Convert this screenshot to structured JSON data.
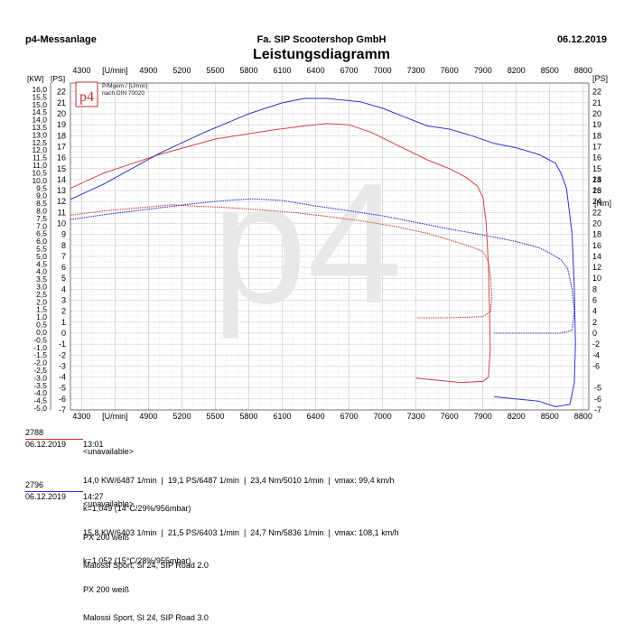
{
  "header": {
    "left": "p4-Messanlage",
    "center": "Fa. SIP Scootershop GmbH",
    "right": "06.12.2019"
  },
  "logo": {
    "text": "p4",
    "note1": "P/Mgem / [U/min]",
    "note2": "nach DIN 70020"
  },
  "watermark": "p4",
  "chart_data": {
    "type": "line",
    "title": "Leistungsdiagramm",
    "x_unit_label": "[U/min]",
    "x_ticks": [
      "4300",
      "4900",
      "5200",
      "5500",
      "5800",
      "6100",
      "6400",
      "6700",
      "7000",
      "7300",
      "7600",
      "7900",
      "8200",
      "8500",
      "8800"
    ],
    "xlim": [
      4200,
      8850
    ],
    "left_kw_label": "[KW]",
    "left_ps_label": "[PS]",
    "right_ps_label": "[PS]",
    "right_nm_label": "[Nm]",
    "kw_ticks": [
      "16,0",
      "15,5",
      "15,0",
      "14,5",
      "14,0",
      "13,5",
      "13,0",
      "12,5",
      "12,0",
      "11,5",
      "11,0",
      "10,5",
      "10,0",
      "9,5",
      "9,0",
      "8,5",
      "8,0",
      "7,5",
      "7,0",
      "6,5",
      "6,0",
      "5,5",
      "5,0",
      "4,5",
      "4,0",
      "3,5",
      "3,0",
      "2,5",
      "2,0",
      "1,5",
      "1,0",
      "0,5",
      "0,0",
      "-0,5",
      "-1,0",
      "-1,5",
      "-2,0",
      "-2,5",
      "-3,0",
      "-3,5",
      "-4,0",
      "-4,5",
      "-5,0"
    ],
    "ps_ticks": [
      "22",
      "21",
      "20",
      "19",
      "18",
      "17",
      "16",
      "15",
      "14",
      "13",
      "12",
      "11",
      "10",
      "9",
      "8",
      "7",
      "6",
      "5",
      "4",
      "3",
      "2",
      "1",
      "0",
      "-1",
      "-2",
      "-3",
      "-4",
      "-5",
      "-6",
      "-7"
    ],
    "right_ps_ticks": [
      "22",
      "21",
      "20",
      "19",
      "18",
      "17",
      "16",
      "15",
      "14",
      "13"
    ],
    "nm_ticks": [
      "28",
      "26",
      "24",
      "22",
      "20",
      "18",
      "16",
      "14",
      "12",
      "10",
      "8",
      "6",
      "4",
      "2",
      "0",
      "-2",
      "-4",
      "-6"
    ],
    "nm_low_ticks": [
      "-5",
      "-6",
      "-7"
    ],
    "ylim_ps": [
      -7,
      22.8
    ],
    "nm_scale_ps_per_nm": 0.5,
    "grid": true,
    "series": [
      {
        "name": "2788",
        "color": "#d04545",
        "power_ps": [
          [
            4200,
            13.2
          ],
          [
            4500,
            14.6
          ],
          [
            5000,
            16.3
          ],
          [
            5500,
            17.7
          ],
          [
            6000,
            18.5
          ],
          [
            6300,
            18.9
          ],
          [
            6500,
            19.1
          ],
          [
            6700,
            19.0
          ],
          [
            6900,
            18.3
          ],
          [
            7100,
            17.3
          ],
          [
            7400,
            15.8
          ],
          [
            7600,
            15.0
          ],
          [
            7750,
            14.2
          ],
          [
            7850,
            13.4
          ],
          [
            7900,
            12.4
          ],
          [
            7930,
            10
          ],
          [
            7950,
            6
          ],
          [
            7960,
            2
          ],
          [
            7965,
            -1.5
          ],
          [
            7950,
            -4
          ],
          [
            7900,
            -4.4
          ],
          [
            7700,
            -4.5
          ],
          [
            7500,
            -4.3
          ],
          [
            7300,
            -4.1
          ]
        ],
        "torque_nm": [
          [
            4200,
            21.5
          ],
          [
            4500,
            22.3
          ],
          [
            4900,
            23.0
          ],
          [
            5100,
            23.4
          ],
          [
            5300,
            23.2
          ],
          [
            5600,
            22.9
          ],
          [
            5900,
            22.5
          ],
          [
            6200,
            22.0
          ],
          [
            6500,
            21.3
          ],
          [
            6800,
            20.5
          ],
          [
            7100,
            19.5
          ],
          [
            7400,
            18.2
          ],
          [
            7600,
            17.0
          ],
          [
            7800,
            15.7
          ],
          [
            7900,
            14.9
          ],
          [
            7950,
            13.0
          ],
          [
            7970,
            10.0
          ],
          [
            7980,
            6.5
          ],
          [
            7970,
            4.0
          ],
          [
            7900,
            3.0
          ],
          [
            7600,
            2.8
          ],
          [
            7300,
            2.8
          ]
        ]
      },
      {
        "name": "2796",
        "color": "#3232c8",
        "power_ps": [
          [
            4200,
            12.2
          ],
          [
            4500,
            13.6
          ],
          [
            5000,
            16.4
          ],
          [
            5400,
            18.3
          ],
          [
            5800,
            20.0
          ],
          [
            6100,
            21.0
          ],
          [
            6300,
            21.4
          ],
          [
            6500,
            21.4
          ],
          [
            6800,
            21.1
          ],
          [
            7000,
            20.5
          ],
          [
            7200,
            19.7
          ],
          [
            7400,
            18.9
          ],
          [
            7600,
            18.6
          ],
          [
            7800,
            18.0
          ],
          [
            8000,
            17.3
          ],
          [
            8200,
            16.9
          ],
          [
            8400,
            16.3
          ],
          [
            8550,
            15.5
          ],
          [
            8600,
            14.6
          ],
          [
            8650,
            13.2
          ],
          [
            8700,
            9
          ],
          [
            8720,
            4
          ],
          [
            8730,
            -1
          ],
          [
            8720,
            -4.5
          ],
          [
            8680,
            -6.5
          ],
          [
            8550,
            -6.7
          ],
          [
            8400,
            -6.2
          ],
          [
            8200,
            -6.0
          ],
          [
            8000,
            -5.8
          ]
        ],
        "torque_nm": [
          [
            4200,
            20.7
          ],
          [
            4500,
            21.6
          ],
          [
            4900,
            22.6
          ],
          [
            5300,
            23.6
          ],
          [
            5600,
            24.2
          ],
          [
            5836,
            24.5
          ],
          [
            6100,
            24.2
          ],
          [
            6400,
            23.2
          ],
          [
            6700,
            22.3
          ],
          [
            7000,
            21.4
          ],
          [
            7300,
            20.2
          ],
          [
            7600,
            19.0
          ],
          [
            7900,
            17.9
          ],
          [
            8200,
            16.7
          ],
          [
            8400,
            15.6
          ],
          [
            8500,
            14.6
          ],
          [
            8600,
            13.4
          ],
          [
            8660,
            11.8
          ],
          [
            8700,
            8.0
          ],
          [
            8720,
            4.0
          ],
          [
            8700,
            0.5
          ],
          [
            8600,
            0.0
          ],
          [
            8400,
            0.0
          ],
          [
            8100,
            0.0
          ],
          [
            8000,
            0.0
          ]
        ]
      }
    ]
  },
  "records": [
    {
      "id": "2788",
      "date": "06.12.2019",
      "time": "13:01",
      "line1": "<unavailable>",
      "line2": "14,0 KW/6487 1/min  |  19,1 PS/6487 1/min  |  23,4 Nm/5010 1/min  |  vmax: 99,4 km/h",
      "line3": "k=1,049 (14°C/29%/956mbar)",
      "line4": "PX 200 weiß",
      "line5": "Malossi Sport, SI 24, SIP Road 2.0"
    },
    {
      "id": "2796",
      "date": "06.12.2019",
      "time": "14:27",
      "line1": "<unavailable>",
      "line2": "15,8 KW/6403 1/min  |  21,5 PS/6403 1/min  |  24,7 Nm/5836 1/min  |  vmax: 108,1 km/h",
      "line3": "k=1,052 (15°C/28%/955mbar)",
      "line4": "PX 200 weiß",
      "line5": "Malossi Sport, SI 24, SIP Road 3.0"
    }
  ]
}
